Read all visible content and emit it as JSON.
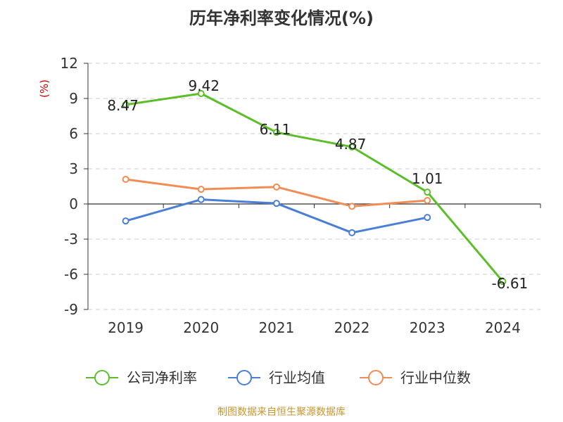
{
  "chart_data": {
    "type": "line",
    "title": "历年净利率变化情况(%)",
    "unit_label": "(%)",
    "categories": [
      "2019",
      "2020",
      "2021",
      "2022",
      "2023",
      "2024"
    ],
    "ylim": [
      -9,
      12
    ],
    "yticks": [
      12,
      9,
      6,
      3,
      0,
      -3,
      -6,
      -9
    ],
    "grid": true,
    "legend_position": "bottom",
    "series": [
      {
        "name": "公司净利率",
        "color": "#5cbf2a",
        "values": [
          8.47,
          9.42,
          6.11,
          4.87,
          1.01,
          -6.61
        ],
        "show_labels": true,
        "labels": [
          "8.47",
          "9.42",
          "6.11",
          "4.87",
          "1.01",
          "-6.61"
        ]
      },
      {
        "name": "行业均值",
        "color": "#4a7fd8",
        "values": [
          -1.45,
          0.38,
          0.05,
          -2.45,
          -1.15,
          null
        ],
        "show_labels": false
      },
      {
        "name": "行业中位数",
        "color": "#f28c55",
        "values": [
          2.1,
          1.25,
          1.45,
          -0.2,
          0.3,
          null
        ],
        "show_labels": false
      }
    ]
  },
  "source": "制图数据来自恒生聚源数据库"
}
